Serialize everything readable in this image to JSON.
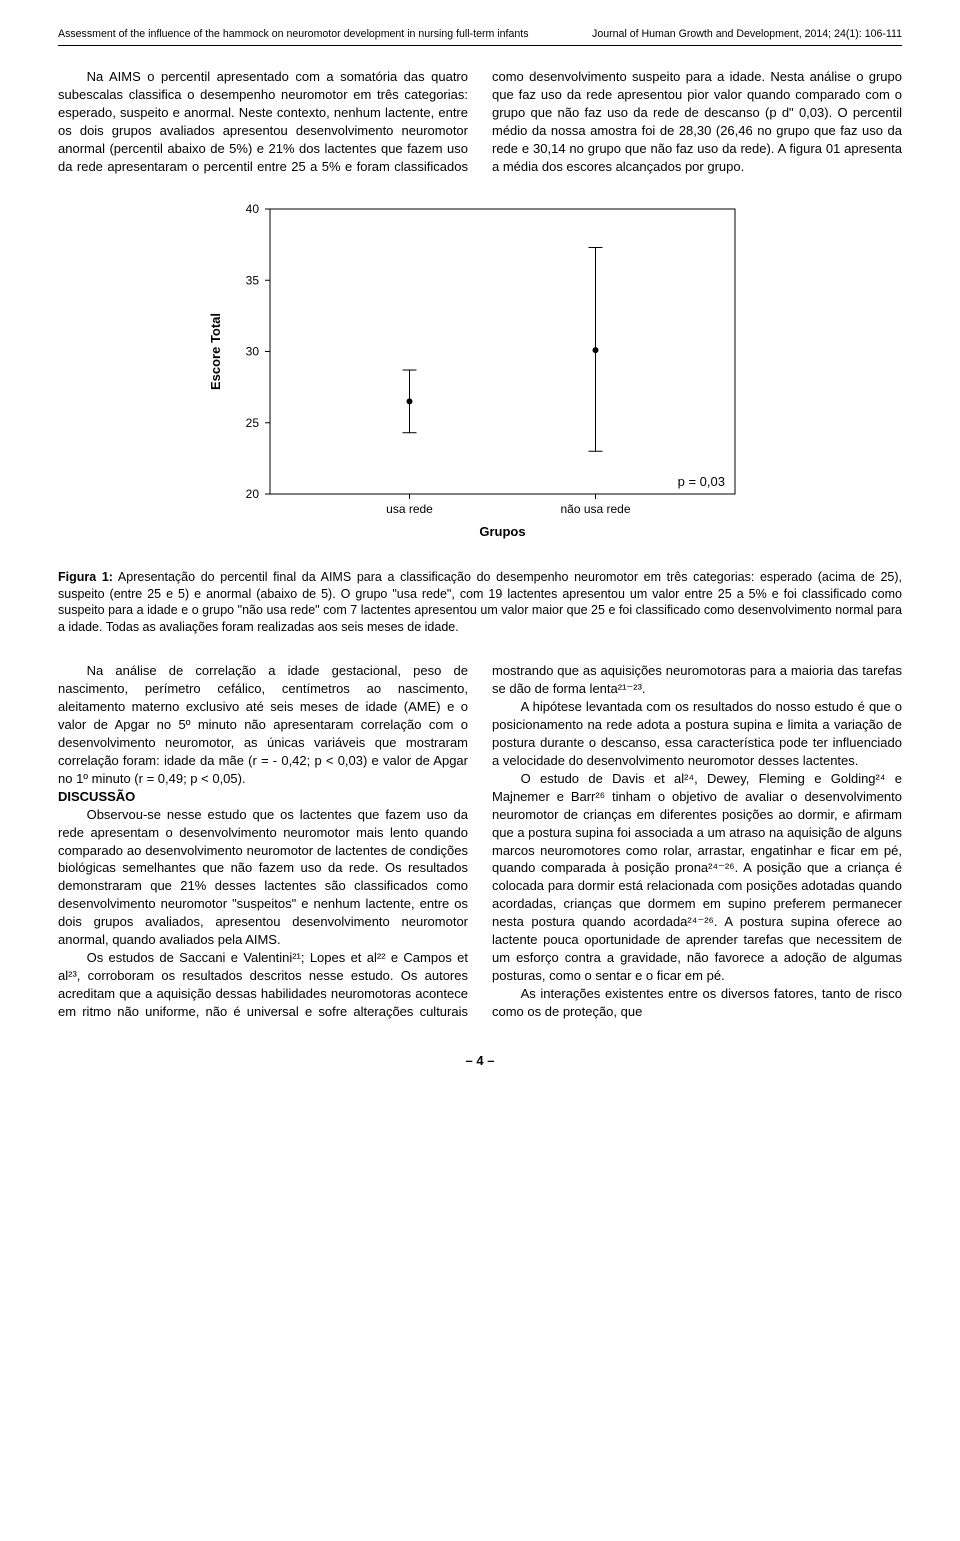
{
  "header": {
    "left": "Assessment of the influence of the hammock on neuromotor development in nursing full-term infants",
    "right": "Journal of Human Growth and Development, 2014; 24(1): 106-111"
  },
  "top_block": {
    "para": "Na AIMS o percentil apresentado com a somatória das quatro subescalas classifica o desempenho neuromotor em três categorias: esperado, suspeito e anormal. Neste contexto, nenhum lactente, entre os dois grupos avaliados apresentou desenvolvimento neuromotor anormal (percentil abaixo de 5%) e 21% dos lactentes que fazem uso da rede apresentaram o percentil entre 25 a 5% e foram classificados como desenvolvimento suspeito para a idade. Nesta análise o grupo que faz uso da rede apresentou pior valor quando comparado com o grupo que não faz uso da rede de descanso (p d\" 0,03). O percentil médio da nossa amostra foi de 28,30 (26,46 no grupo que faz uso da rede e 30,14 no grupo que não faz uso da rede). A figura 01 apresenta a média dos escores alcançados por grupo."
  },
  "chart": {
    "type": "errorbar",
    "y_label": "Escore Total",
    "x_label": "Grupos",
    "p_text": "p = 0,03",
    "y_ticks": [
      20,
      25,
      30,
      35,
      40
    ],
    "y_min": 20,
    "y_max": 40,
    "categories": [
      "usa rede",
      "não usa rede"
    ],
    "points": [
      {
        "x": 0,
        "mean": 26.5,
        "low": 24.3,
        "high": 28.7
      },
      {
        "x": 1,
        "mean": 30.1,
        "low": 23.0,
        "high": 37.3
      }
    ],
    "stroke_color": "#000000",
    "background_color": "#ffffff",
    "axis_width": 1,
    "marker_radius": 3,
    "cap_half_width": 7,
    "tick_len": 5,
    "font_size_ticks": 12,
    "font_size_axis_label": 13,
    "font_size_p": 13
  },
  "caption": {
    "lead": "Figura 1:",
    "rest": " Apresentação do percentil final da AIMS para a classificação do desempenho neuromotor em três categorias: esperado (acima de 25), suspeito (entre 25 e 5) e anormal (abaixo de 5). O grupo \"usa rede\", com 19 lactentes apresentou um valor entre 25 a 5% e foi classificado como suspeito para a idade e o grupo \"não usa rede\" com 7 lactentes apresentou um valor maior que 25 e foi classificado como desenvolvimento normal para a idade. Todas as avaliações foram realizadas aos seis meses de idade."
  },
  "bottom_block": {
    "p1": "Na análise de correlação a idade gestacional, peso de nascimento, perímetro cefálico, centímetros ao nascimento, aleitamento materno exclusivo até seis meses de idade (AME) e o valor de Apgar no 5º minuto não apresentaram correlação com o desenvolvimento neuromotor, as únicas variáveis que mostraram correlação foram: idade da mãe (r = - 0,42; p < 0,03) e valor de Apgar no 1º minuto (r = 0,49; p < 0,05).",
    "h_discussao": "DISCUSSÃO",
    "p2": "Observou-se nesse estudo que os lactentes que fazem uso da rede apresentam o desenvolvimento neuromotor mais lento quando comparado ao desenvolvimento neuromotor de lactentes de condições biológicas semelhantes que não fazem uso da rede. Os resultados demonstraram que 21% desses lactentes são classificados como desenvolvimento neuromotor \"suspeitos\" e nenhum lactente, entre os dois grupos avaliados, apresentou desenvolvimento neuromotor anormal, quando avaliados pela AIMS.",
    "p3": "Os estudos de Saccani e Valentini²¹; Lopes et al²² e Campos et al²³, corroboram os resultados descritos nesse estudo. Os autores acreditam que a aquisição dessas habilidades neuromotoras acontece em ritmo não uniforme, não é universal e sofre alterações culturais mostrando que as aquisições neuromotoras para a maioria das tarefas se dão de forma lenta²¹⁻²³.",
    "p4": "A hipótese levantada com os resultados do nosso estudo é que o posicionamento na rede adota a postura supina e limita a variação de postura durante o descanso, essa característica pode ter influenciado a velocidade do desenvolvimento neuromotor desses lactentes.",
    "p5": "O estudo de Davis et al²⁴, Dewey, Fleming e Golding²⁴ e Majnemer e Barr²⁶ tinham o objetivo de avaliar o desenvolvimento neuromotor de crianças em diferentes posições ao dormir, e afirmam que a postura supina foi associada a um atraso na aquisição de alguns marcos neuromotores como rolar, arrastar, engatinhar e ficar em pé, quando comparada à posição prona²⁴⁻²⁶. A posição que a criança é colocada para dormir está relacionada com posições adotadas quando acordadas, crianças que dormem em supino preferem permanecer nesta postura quando acordada²⁴⁻²⁶. A postura supina oferece ao lactente pouca oportunidade de aprender tarefas que necessitem de um esforço contra a gravidade, não favorece a adoção de algumas posturas, como o sentar e o ficar em pé.",
    "p6": "As interações existentes entre os diversos fatores, tanto de risco como os de proteção, que"
  },
  "footer": {
    "page": "– 4 –"
  }
}
